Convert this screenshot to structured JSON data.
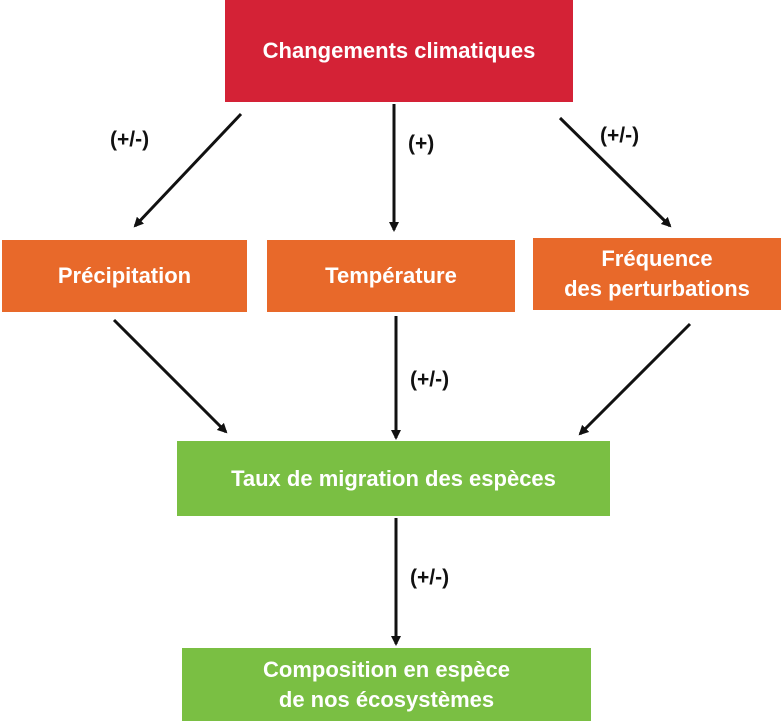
{
  "nodes": {
    "climate_change": "Changements climatiques",
    "precipitation": "Précipitation",
    "temperature": "Température",
    "disturbance_frequency": "Fréquence\ndes perturbations",
    "migration_rate": "Taux de migration des espèces",
    "composition": "Composition en espèce\nde nos écosystèmes"
  },
  "edge_labels": {
    "climate_to_precipitation": "(+/-)",
    "climate_to_temperature": "(+)",
    "climate_to_disturbance": "(+/-)",
    "temperature_to_migration": "(+/-)",
    "migration_to_composition": "(+/-)"
  },
  "colors": {
    "top_node": "#d42236",
    "middle_nodes": "#e8692a",
    "lower_nodes": "#7abf43",
    "arrows": "#111111"
  }
}
